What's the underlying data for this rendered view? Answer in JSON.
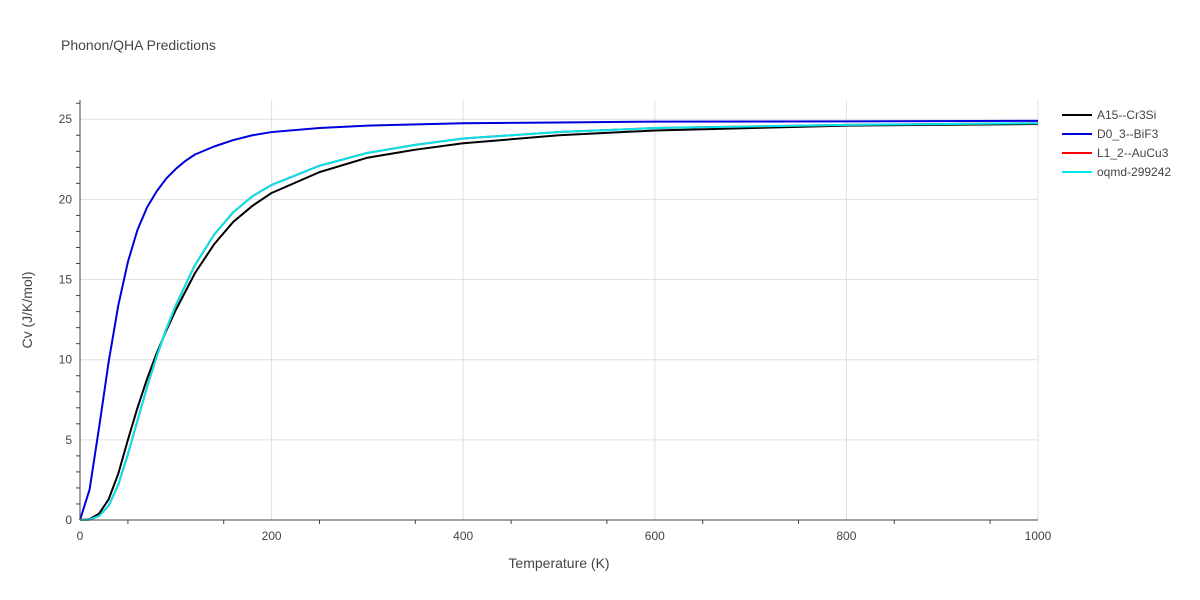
{
  "chart_data": {
    "type": "line",
    "title": "Phonon/QHA Predictions",
    "xlabel": "Temperature (K)",
    "ylabel": "Cv (J/K/mol)",
    "xlim": [
      0,
      1000
    ],
    "ylim": [
      0,
      26.2
    ],
    "x_ticks": [
      0,
      200,
      400,
      600,
      800,
      1000
    ],
    "y_ticks": [
      0,
      5,
      10,
      15,
      20,
      25
    ],
    "grid": true,
    "legend_position": "top-right",
    "series": [
      {
        "name": "A15--Cr3Si",
        "color": "#000000",
        "x": [
          0,
          10,
          20,
          30,
          40,
          50,
          60,
          70,
          80,
          90,
          100,
          120,
          140,
          160,
          180,
          200,
          250,
          300,
          350,
          400,
          500,
          600,
          800,
          1000
        ],
        "y": [
          0,
          0.05,
          0.4,
          1.3,
          2.9,
          5.0,
          7.0,
          8.8,
          10.4,
          11.8,
          13.1,
          15.4,
          17.2,
          18.6,
          19.6,
          20.4,
          21.7,
          22.6,
          23.1,
          23.5,
          24.0,
          24.3,
          24.6,
          24.7
        ]
      },
      {
        "name": "D0_3--BiF3",
        "color": "#0000dd",
        "x": [
          0,
          10,
          20,
          30,
          40,
          50,
          60,
          70,
          80,
          90,
          100,
          110,
          120,
          140,
          160,
          180,
          200,
          250,
          300,
          400,
          500,
          600,
          800,
          1000
        ],
        "y": [
          0,
          1.9,
          5.8,
          9.9,
          13.4,
          16.1,
          18.1,
          19.5,
          20.5,
          21.3,
          21.9,
          22.4,
          22.8,
          23.3,
          23.7,
          24.0,
          24.2,
          24.45,
          24.6,
          24.75,
          24.8,
          24.85,
          24.87,
          24.9
        ]
      },
      {
        "name": "L1_2--AuCu3",
        "color": "#ff0000",
        "x": [
          0,
          10,
          20,
          30,
          40,
          50,
          60,
          70,
          80,
          90,
          100,
          120,
          140,
          160,
          180,
          200,
          250,
          300,
          350,
          400,
          500,
          600,
          800,
          1000
        ],
        "y": [
          0,
          0.02,
          0.25,
          0.9,
          2.2,
          4.1,
          6.2,
          8.3,
          10.2,
          11.9,
          13.4,
          15.9,
          17.8,
          19.2,
          20.2,
          20.9,
          22.1,
          22.9,
          23.4,
          23.8,
          24.2,
          24.45,
          24.65,
          24.75
        ]
      },
      {
        "name": "oqmd-299242",
        "color": "#00e5ee",
        "x": [
          0,
          10,
          20,
          30,
          40,
          50,
          60,
          70,
          80,
          90,
          100,
          120,
          140,
          160,
          180,
          200,
          250,
          300,
          350,
          400,
          500,
          600,
          800,
          1000
        ],
        "y": [
          0,
          0.02,
          0.25,
          0.9,
          2.2,
          4.1,
          6.2,
          8.3,
          10.2,
          11.9,
          13.4,
          15.9,
          17.8,
          19.2,
          20.2,
          20.9,
          22.1,
          22.9,
          23.4,
          23.8,
          24.2,
          24.45,
          24.65,
          24.75
        ]
      }
    ]
  }
}
